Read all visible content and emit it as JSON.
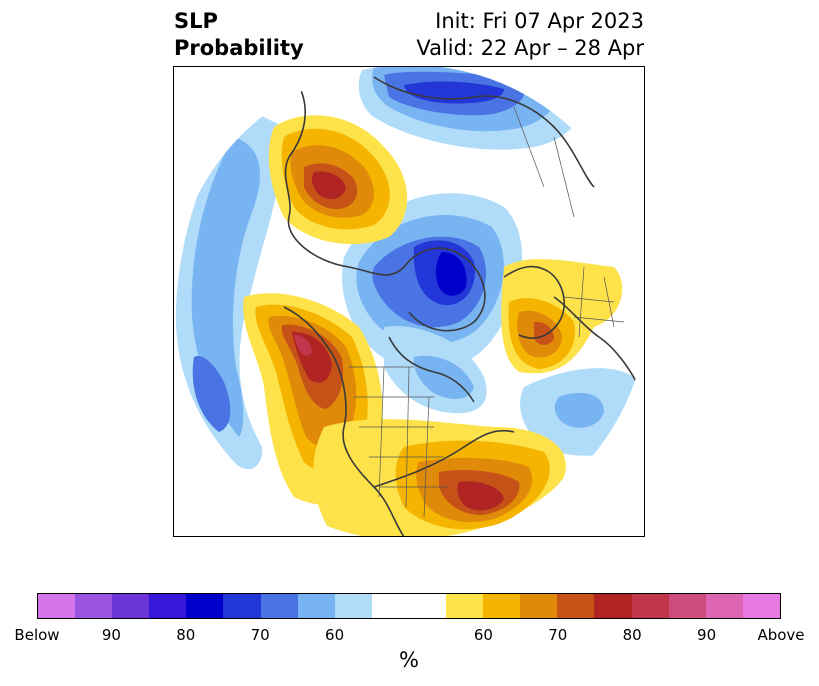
{
  "title": {
    "left_line1": "SLP",
    "left_line2": "Probability",
    "right_line1": "Init: Fri 07 Apr 2023",
    "right_line2": "Valid: 22 Apr – 28 Apr"
  },
  "colorbar": {
    "colors": [
      "#d774e8",
      "#9a55e0",
      "#6b35d8",
      "#3818d8",
      "#0000cc",
      "#2336d8",
      "#4a74e4",
      "#78b4f2",
      "#b0dcfa",
      "#ffffff",
      "#ffffff",
      "#fde24a",
      "#f4b400",
      "#e08a0a",
      "#c65218",
      "#b02424",
      "#c2364c",
      "#cc4c7c",
      "#de64b4",
      "#e67ae2"
    ],
    "tick_labels": [
      "Below",
      "90",
      "80",
      "70",
      "60",
      "60",
      "70",
      "80",
      "90",
      "Above"
    ],
    "unit": "%"
  }
}
